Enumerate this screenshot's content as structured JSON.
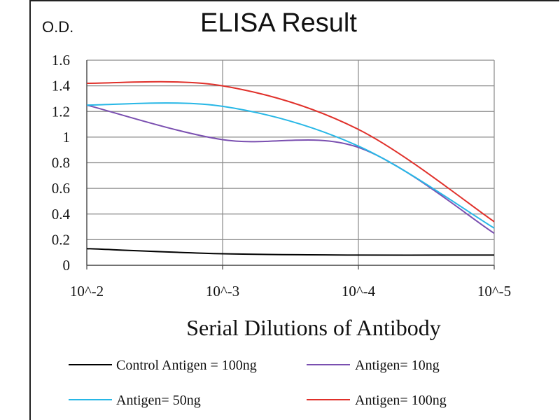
{
  "chart_data": {
    "type": "line",
    "title": "ELISA Result",
    "ylabel": "O.D.",
    "xlabel": "Serial Dilutions  of Antibody",
    "categories": [
      "10^-2",
      "10^-3",
      "10^-4",
      "10^-5"
    ],
    "ylim": [
      0,
      1.6
    ],
    "yticks": [
      "0",
      "0.2",
      "0.4",
      "0.6",
      "0.8",
      "1",
      "1.2",
      "1.4",
      "1.6"
    ],
    "grid": true,
    "legend_position": "bottom",
    "series": [
      {
        "name": "Control Antigen = 100ng",
        "color": "#000000",
        "values": [
          0.13,
          0.09,
          0.08,
          0.08
        ]
      },
      {
        "name": "Antigen= 10ng",
        "color": "#7a4fb0",
        "values": [
          1.25,
          0.98,
          0.92,
          0.25
        ]
      },
      {
        "name": "Antigen= 50ng",
        "color": "#27b7e6",
        "values": [
          1.25,
          1.24,
          0.93,
          0.29
        ]
      },
      {
        "name": "Antigen= 100ng",
        "color": "#e0302a",
        "values": [
          1.42,
          1.4,
          1.06,
          0.34
        ]
      }
    ]
  }
}
